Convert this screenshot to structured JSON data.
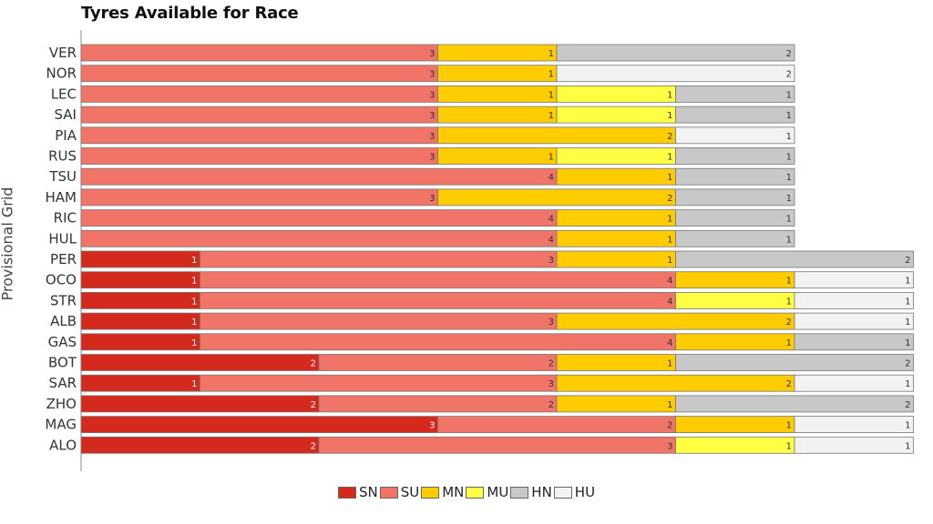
{
  "chart_data": {
    "type": "bar",
    "orientation": "horizontal",
    "stacked": true,
    "title": "Tyres Available for Race",
    "ylabel": "Provisional Grid",
    "categories": [
      "VER",
      "NOR",
      "LEC",
      "SAI",
      "PIA",
      "RUS",
      "TSU",
      "HAM",
      "RIC",
      "HUL",
      "PER",
      "OCO",
      "STR",
      "ALB",
      "GAS",
      "BOT",
      "SAR",
      "ZHO",
      "MAG",
      "ALO"
    ],
    "series": [
      {
        "name": "SN",
        "color": "#d42a1e",
        "values": [
          0,
          0,
          0,
          0,
          0,
          0,
          0,
          0,
          0,
          0,
          1,
          1,
          1,
          1,
          1,
          2,
          1,
          2,
          3,
          2
        ]
      },
      {
        "name": "SU",
        "color": "#f07468",
        "values": [
          3,
          3,
          3,
          3,
          3,
          3,
          4,
          3,
          4,
          4,
          3,
          4,
          4,
          3,
          4,
          2,
          3,
          2,
          2,
          3
        ]
      },
      {
        "name": "MN",
        "color": "#ffcc00",
        "values": [
          1,
          1,
          1,
          1,
          2,
          1,
          1,
          2,
          1,
          1,
          1,
          1,
          0,
          2,
          1,
          1,
          2,
          1,
          1,
          0
        ]
      },
      {
        "name": "MU",
        "color": "#ffff44",
        "values": [
          0,
          0,
          1,
          1,
          0,
          1,
          0,
          0,
          0,
          0,
          0,
          0,
          1,
          0,
          0,
          0,
          0,
          0,
          0,
          1
        ]
      },
      {
        "name": "HN",
        "color": "#c8c8c8",
        "values": [
          2,
          0,
          1,
          1,
          0,
          1,
          1,
          1,
          1,
          1,
          2,
          0,
          0,
          0,
          1,
          2,
          0,
          2,
          0,
          0
        ]
      },
      {
        "name": "HU",
        "color": "#f2f2f2",
        "values": [
          0,
          2,
          0,
          0,
          1,
          0,
          0,
          0,
          0,
          0,
          0,
          1,
          1,
          1,
          0,
          0,
          1,
          0,
          1,
          1
        ]
      }
    ],
    "xlim": [
      0,
      7
    ],
    "grid": false,
    "legend_position": "bottom-center"
  }
}
